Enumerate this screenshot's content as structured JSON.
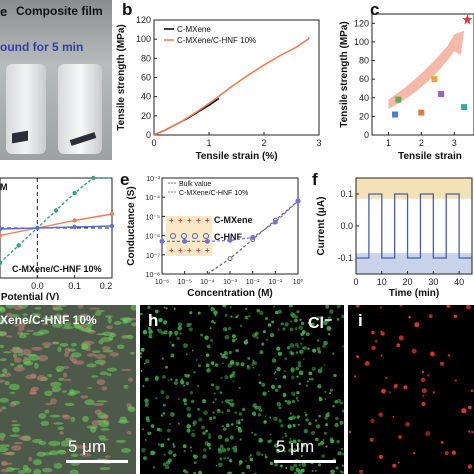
{
  "panels": {
    "a": {
      "title": "Composite film",
      "caption": "ound for 5 min",
      "label_left": "e"
    },
    "b": {
      "label": "b"
    },
    "c": {
      "label": "c"
    },
    "d": {
      "label_partial": "M"
    },
    "e": {
      "label": "e"
    },
    "f": {
      "label": "f"
    },
    "g": {
      "caption": "Xene/C-HNF 10%",
      "scale_bar": "5 μm"
    },
    "h": {
      "label": "h",
      "element": "Cl⁻",
      "scale_bar": "5 μm"
    },
    "i": {
      "label": "i"
    }
  },
  "chart_data": [
    {
      "panel": "b",
      "type": "line",
      "ylabel": "Tensile strength (MPa)",
      "xlabel": "Tensile strain (%)",
      "x_ticks": [
        "0",
        "1",
        "2",
        "3"
      ],
      "y_ticks": [
        "0",
        "20",
        "40",
        "60",
        "80",
        "100",
        "120"
      ],
      "xlim": [
        0,
        3
      ],
      "ylim": [
        0,
        120
      ],
      "legend": [
        "C-MXene",
        "C-MXene/C-HNF 10%"
      ],
      "series": [
        {
          "name": "C-MXene",
          "color": "#111111",
          "x": [
            0,
            0.2,
            0.4,
            0.6,
            0.8,
            1.0,
            1.15,
            1.18
          ],
          "y": [
            0,
            5,
            11,
            17,
            24,
            31,
            37,
            38
          ]
        },
        {
          "name": "C-MXene/C-HNF 10%",
          "color": "#e8825a",
          "x": [
            0,
            0.2,
            0.5,
            0.8,
            1.1,
            1.4,
            1.7,
            2.0,
            2.3,
            2.6,
            2.8,
            2.82
          ],
          "y": [
            0,
            5,
            14,
            25,
            37,
            50,
            62,
            73,
            83,
            92,
            100,
            102
          ]
        }
      ]
    },
    {
      "panel": "c",
      "type": "scatter",
      "ylabel": "Tensile strength (MPa)",
      "xlabel": "Tensile strain",
      "x_ticks": [
        "1",
        "2",
        "3"
      ],
      "y_ticks": [
        "0",
        "20",
        "40",
        "60",
        "80",
        "100",
        "120"
      ],
      "xlim": [
        0.5,
        3.6
      ],
      "ylim": [
        0,
        130
      ],
      "series": [
        {
          "name": "",
          "color": "#d63b3b",
          "x": [
            3.4
          ],
          "y": [
            124
          ]
        },
        {
          "name": "",
          "color": "#6aa84f",
          "x": [
            1.3
          ],
          "y": [
            38
          ]
        },
        {
          "name": "",
          "color": "#4c7ec9",
          "x": [
            1.2
          ],
          "y": [
            22
          ]
        },
        {
          "name": "",
          "color": "#e8a33b",
          "x": [
            2.4
          ],
          "y": [
            60
          ]
        },
        {
          "name": "",
          "color": "#8e6bb8",
          "x": [
            2.6
          ],
          "y": [
            44
          ]
        },
        {
          "name": "",
          "color": "#d97e3b",
          "x": [
            2.0
          ],
          "y": [
            24
          ]
        },
        {
          "name": "",
          "color": "#3aa7a0",
          "x": [
            3.3
          ],
          "y": [
            30
          ]
        }
      ]
    },
    {
      "panel": "d",
      "type": "line",
      "xlabel": "Potential (V)",
      "x_ticks": [
        "0.0",
        "0.1",
        "0.2"
      ],
      "legend": [
        "C-MXene/C-HNF 10%"
      ],
      "xlim": [
        -0.1,
        0.2
      ],
      "ylim": [
        -1,
        1
      ],
      "series": [
        {
          "name": "C-MXene/C-HNF 10%",
          "color": "#3aa37a",
          "x": [
            -0.1,
            -0.05,
            0.0,
            0.05,
            0.1,
            0.15,
            0.2
          ],
          "y": [
            -0.7,
            -0.35,
            0.0,
            0.35,
            0.7,
            1.0,
            1.3
          ]
        },
        {
          "name": "",
          "color": "#e8825a",
          "x": [
            -0.1,
            0.0,
            0.1,
            0.2
          ],
          "y": [
            -0.15,
            0.0,
            0.15,
            0.28
          ]
        },
        {
          "name": "",
          "color": "#5a6fd0",
          "x": [
            -0.1,
            0.0,
            0.1,
            0.2
          ],
          "y": [
            -0.02,
            0.0,
            0.02,
            0.04
          ]
        }
      ]
    },
    {
      "panel": "e",
      "type": "line",
      "ylabel": "Conductance (S)",
      "xlabel": "Concentration (M)",
      "x_ticks": [
        "10⁻⁶",
        "10⁻⁵",
        "10⁻⁴",
        "10⁻³",
        "10⁻²",
        "10⁻¹",
        "10⁰"
      ],
      "y_ticks": [
        "10⁻⁸",
        "10⁻⁷",
        "10⁻⁶",
        "10⁻⁵",
        "10⁻⁴",
        "10⁻³"
      ],
      "legend": [
        "Bulk value",
        "C-MXene/C-HNF 10%"
      ],
      "inset_labels": [
        "C-MXene",
        "C-HNF"
      ],
      "xlim": [
        -6,
        0
      ],
      "ylim": [
        -8,
        -3
      ],
      "series": [
        {
          "name": "Bulk value",
          "color": "#666666",
          "x": [
            -4,
            -3,
            -2,
            -1,
            0
          ],
          "y": [
            -8.2,
            -7.2,
            -6.2,
            -5.2,
            -4.2
          ]
        },
        {
          "name": "C-MXene/C-HNF 10%",
          "color": "#7b6fd6",
          "x": [
            -6,
            -5,
            -4,
            -3,
            -2,
            -1,
            0
          ],
          "y": [
            -6.3,
            -6.3,
            -6.3,
            -6.25,
            -6.1,
            -5.3,
            -4.2
          ]
        }
      ]
    },
    {
      "panel": "f",
      "type": "line",
      "ylabel": "Current (μA)",
      "xlabel": "Time (min)",
      "x_ticks": [
        "0",
        "10",
        "20",
        "30",
        "40"
      ],
      "y_ticks": [
        "-0.1",
        "0.0",
        "0.1"
      ],
      "xlim": [
        0,
        45
      ],
      "ylim": [
        -0.15,
        0.15
      ],
      "series": [
        {
          "name": "",
          "color": "#4a5fa8",
          "x": [
            0,
            5,
            5,
            10,
            10,
            15,
            15,
            20,
            20,
            25,
            25,
            30,
            30,
            35,
            35,
            40,
            40,
            45
          ],
          "y": [
            -0.1,
            -0.1,
            0.1,
            0.1,
            -0.1,
            -0.1,
            0.1,
            0.1,
            -0.1,
            -0.1,
            0.1,
            0.1,
            -0.1,
            -0.1,
            0.1,
            0.1,
            -0.1,
            -0.1
          ]
        }
      ]
    }
  ]
}
